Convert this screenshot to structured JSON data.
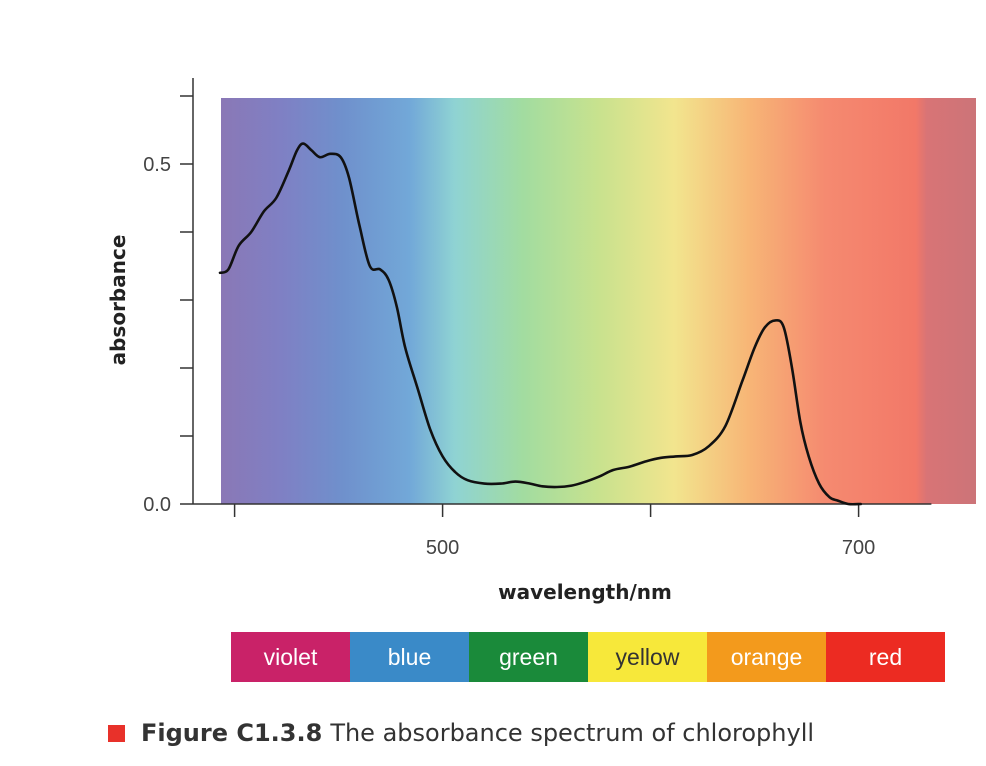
{
  "chart_data": {
    "type": "line",
    "title": "",
    "xlabel": "wavelength/nm",
    "ylabel": "absorbance",
    "xlim": [
      380,
      735
    ],
    "ylim": [
      0,
      0.6
    ],
    "x_ticks": [
      400,
      500,
      600,
      700
    ],
    "x_tick_labels": [
      "",
      "500",
      "",
      "700"
    ],
    "y_ticks": [
      0,
      0.1,
      0.2,
      0.3,
      0.4,
      0.5,
      0.6
    ],
    "y_tick_labels": [
      "0.0",
      "",
      "",
      "",
      "",
      "0.5",
      ""
    ],
    "grid": false,
    "background": "visible light spectrum gradient (violet to red)",
    "series": [
      {
        "color": "#111111",
        "x": [
          393,
          397,
          402,
          408,
          414,
          420,
          426,
          430,
          433,
          437,
          441,
          446,
          451,
          455,
          460,
          465,
          470,
          474,
          478,
          482,
          488,
          494,
          500,
          506,
          512,
          520,
          528,
          535,
          542,
          548,
          555,
          562,
          568,
          575,
          582,
          590,
          598,
          605,
          612,
          620,
          628,
          636,
          644,
          650,
          655,
          660,
          664,
          668,
          672,
          676,
          681,
          686,
          690,
          695,
          701
        ],
        "y": [
          0.34,
          0.345,
          0.38,
          0.4,
          0.43,
          0.45,
          0.49,
          0.52,
          0.53,
          0.52,
          0.51,
          0.515,
          0.51,
          0.48,
          0.41,
          0.35,
          0.345,
          0.33,
          0.29,
          0.23,
          0.17,
          0.11,
          0.07,
          0.047,
          0.035,
          0.03,
          0.03,
          0.033,
          0.03,
          0.026,
          0.025,
          0.027,
          0.032,
          0.04,
          0.05,
          0.055,
          0.063,
          0.068,
          0.07,
          0.072,
          0.085,
          0.115,
          0.18,
          0.23,
          0.26,
          0.27,
          0.26,
          0.2,
          0.12,
          0.07,
          0.03,
          0.01,
          0.005,
          0,
          0
        ]
      }
    ]
  },
  "bands": [
    {
      "label": "violet",
      "color": "#c92268"
    },
    {
      "label": "blue",
      "color": "#3a8ac8"
    },
    {
      "label": "green",
      "color": "#1a8a3a"
    },
    {
      "label": "yellow",
      "color": "#f7e83a"
    },
    {
      "label": "orange",
      "color": "#f39a1c"
    },
    {
      "label": "red",
      "color": "#ec2b22"
    }
  ],
  "caption": {
    "figure_number": "Figure C1.3.8",
    "text": "The absorbance spectrum of chlorophyll"
  }
}
